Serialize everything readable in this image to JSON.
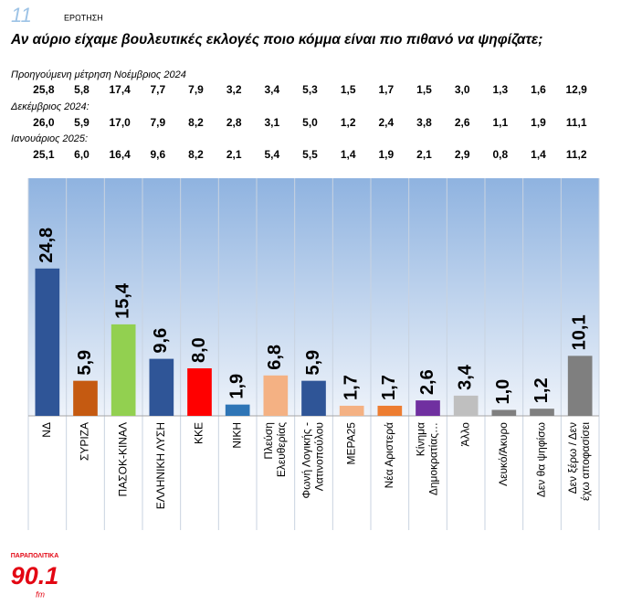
{
  "header": {
    "page_number": "11",
    "label": "ΕΡΩΤΗΣΗ"
  },
  "previous_measurements": [
    {
      "label": "Προηγούμενη μέτρηση Νοέμβριος 2024",
      "values": [
        "25,8",
        "5,8",
        "17,4",
        "7,7",
        "7,9",
        "3,2",
        "3,4",
        "5,3",
        "1,5",
        "1,7",
        "1,5",
        "3,0",
        "1,3",
        "1,6",
        "12,9"
      ]
    },
    {
      "label": "Δεκέμβριος 2024:",
      "values": [
        "26,0",
        "5,9",
        "17,0",
        "7,9",
        "8,2",
        "2,8",
        "3,1",
        "5,0",
        "1,2",
        "2,4",
        "3,8",
        "2,6",
        "1,1",
        "1,9",
        "11,1"
      ]
    },
    {
      "label": "Ιανουάριος 2025:",
      "values": [
        "25,1",
        "6,0",
        "16,4",
        "9,6",
        "8,2",
        "2,1",
        "5,4",
        "5,5",
        "1,4",
        "1,9",
        "2,1",
        "2,9",
        "0,8",
        "1,4",
        "11,2"
      ]
    }
  ],
  "chart_data": {
    "type": "bar",
    "title": "Αν αύριο είχαμε βουλευτικές εκλογές ποιο κόμμα είναι πιο πιθανό να ψηφίζατε;",
    "categories": [
      "ΝΔ",
      "ΣΥΡΙΖΑ",
      "ΠΑΣΟΚ-ΚΙΝΑΛ",
      "ΕΛΛΗΝΙΚΗ ΛΥΣΗ",
      "ΚΚΕ",
      "ΝΙΚΗ",
      "Πλεύση\nΕλευθερίας",
      "Φωνή Λογικής -\nΛατινοπούλου",
      "ΜΕΡΑ25",
      "Νέα Αριστερά",
      "Κίνημα\nΔημοκρατίας…",
      "Άλλο",
      "Λευκό/Άκυρο",
      "Δεν θα ψηφίσω",
      "Δεν ξέρω / Δεν\nέχω αποφασίσει"
    ],
    "values": [
      24.8,
      5.9,
      15.4,
      9.6,
      8.0,
      1.9,
      6.8,
      5.9,
      1.7,
      1.7,
      2.6,
      3.4,
      1.0,
      1.2,
      10.1
    ],
    "value_labels": [
      "24,8",
      "5,9",
      "15,4",
      "9,6",
      "8,0",
      "1,9",
      "6,8",
      "5,9",
      "1,7",
      "1,7",
      "2,6",
      "3,4",
      "1,0",
      "1,2",
      "10,1"
    ],
    "colors": [
      "#2f5597",
      "#c55a11",
      "#92d050",
      "#2f5597",
      "#ff0000",
      "#2e75b6",
      "#f4b183",
      "#2f5597",
      "#f4b183",
      "#ed7d31",
      "#7030a0",
      "#bfbfbf",
      "#7f7f7f",
      "#7f7f7f",
      "#7f7f7f"
    ],
    "ylim": [
      0,
      40
    ]
  },
  "logo": {
    "brand": "ΠΑΡΑΠΟΛΙΤΙΚΑ",
    "frequency": "90.1",
    "band": "fm"
  }
}
